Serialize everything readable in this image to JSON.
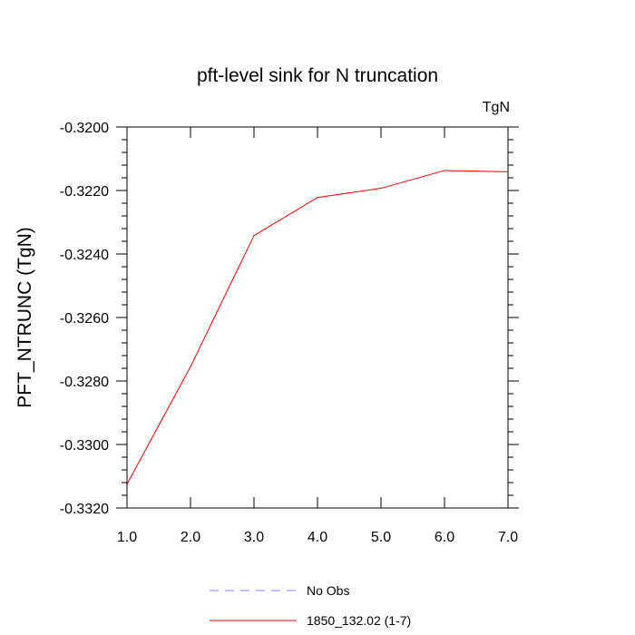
{
  "chart_data": {
    "type": "line",
    "title": "pft-level sink for N truncation",
    "units_label": "TgN",
    "xlabel": "",
    "ylabel": "PFT_NTRUNC  (TgN)",
    "xlim": [
      1.0,
      7.0
    ],
    "ylim": [
      -0.332,
      -0.32
    ],
    "x_ticks": [
      1.0,
      2.0,
      3.0,
      4.0,
      5.0,
      6.0,
      7.0
    ],
    "x_tick_labels": [
      "1.0",
      "2.0",
      "3.0",
      "4.0",
      "5.0",
      "6.0",
      "7.0"
    ],
    "y_ticks": [
      -0.332,
      -0.33,
      -0.328,
      -0.326,
      -0.324,
      -0.322,
      -0.32
    ],
    "y_tick_labels": [
      "-0.3320",
      "-0.3300",
      "-0.3280",
      "-0.3260",
      "-0.3240",
      "-0.3220",
      "-0.3200"
    ],
    "grid": false,
    "legend_position": "bottom",
    "series": [
      {
        "name": "1850_132.02 (1-7)",
        "color": "#ff0000",
        "style": "solid",
        "x": [
          1.0,
          2.0,
          3.0,
          4.0,
          5.0,
          6.0,
          7.0
        ],
        "values": [
          -0.33125,
          -0.32755,
          -0.32342,
          -0.32222,
          -0.32193,
          -0.32137,
          -0.32141
        ]
      }
    ],
    "legend": [
      {
        "label": "No Obs",
        "color": "#8080ff",
        "style": "dashed"
      },
      {
        "label": "1850_132.02 (1-7)",
        "color": "#ff0000",
        "style": "solid"
      }
    ]
  }
}
